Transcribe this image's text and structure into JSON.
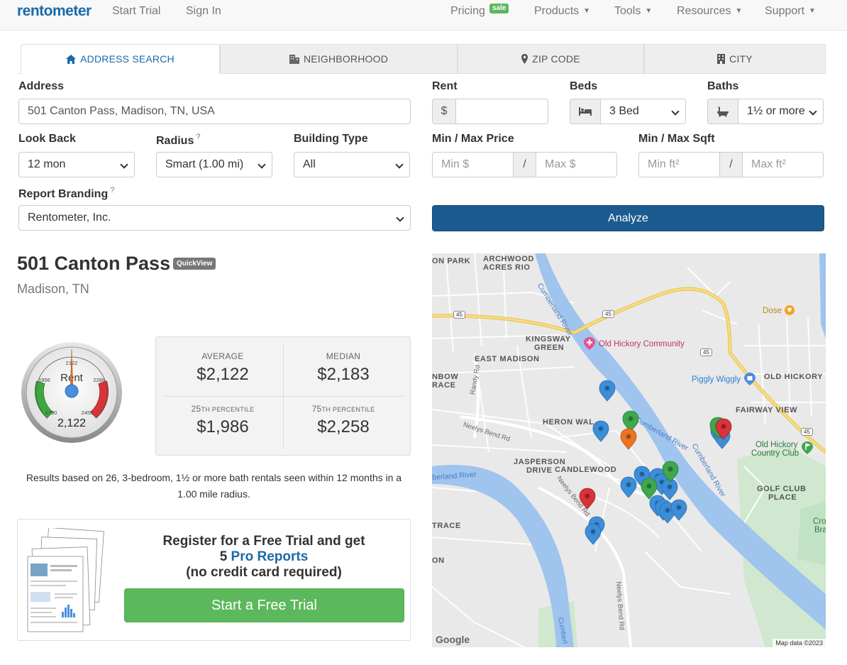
{
  "nav": {
    "logo": "rentometer",
    "start_trial": "Start Trial",
    "sign_in": "Sign In",
    "pricing": "Pricing",
    "sale_badge": "sale",
    "products": "Products",
    "tools": "Tools",
    "resources": "Resources",
    "support": "Support"
  },
  "tabs": [
    {
      "label": "ADDRESS SEARCH",
      "icon": "home-icon",
      "active": true
    },
    {
      "label": "NEIGHBORHOOD",
      "icon": "building-icon",
      "active": false
    },
    {
      "label": "ZIP CODE",
      "icon": "map-marker-icon",
      "active": false
    },
    {
      "label": "CITY",
      "icon": "city-icon",
      "active": false
    }
  ],
  "form": {
    "address_label": "Address",
    "address_value": "501 Canton Pass, Madison, TN, USA",
    "rent_label": "Rent",
    "rent_prefix": "$",
    "rent_value": "",
    "beds_label": "Beds",
    "beds_value": "3 Bed",
    "baths_label": "Baths",
    "baths_value": "1½ or more",
    "lookback_label": "Look Back",
    "lookback_value": "12 mon",
    "radius_label": "Radius",
    "radius_value": "Smart (1.00 mi)",
    "building_label": "Building Type",
    "building_value": "All",
    "price_label": "Min / Max Price",
    "min_price_placeholder": "Min $",
    "max_price_placeholder": "Max $",
    "sqft_label": "Min / Max Sqft",
    "min_sqft_placeholder": "Min ft²",
    "max_sqft_placeholder": "Max ft²",
    "separator": "/",
    "branding_label": "Report Branding",
    "branding_value": "Rentometer, Inc.",
    "help_mark": "?",
    "analyze": "Analyze"
  },
  "result": {
    "title": "501 Canton Pass",
    "quickview": "QuickView",
    "subtitle": "Madison, TN",
    "gauge": {
      "label": "Rent",
      "value": "2,122",
      "ticks": [
        "1790",
        "1956",
        "2122",
        "2288",
        "2455"
      ],
      "level": 0.5
    },
    "average_label": "AVERAGE",
    "average": "$2,122",
    "median_label": "MEDIAN",
    "median": "$2,183",
    "p25_num": "25",
    "p25_label": "TH PERCENTILE",
    "p25": "$1,986",
    "p75_num": "75",
    "p75_label": "TH PERCENTILE",
    "p75": "$2,258",
    "note": "Results based on 26, 3-bedroom, 1½ or more bath rentals seen within 12 months in a 1.00 mile radius."
  },
  "promo": {
    "line1": "Register for a Free Trial and get",
    "line2_prefix": "5 ",
    "line2_link": "Pro Reports",
    "line3": "(no credit card required)",
    "button": "Start a Free Trial"
  },
  "map": {
    "labels": {
      "on_park": "ON PARK",
      "archwood": "ARCHWOOD",
      "acres_rio": "ACRES RIO",
      "kingsway": "KINGSWAY",
      "green": "GREEN",
      "east_madison": "EAST MADISON",
      "nbow": "NBOW",
      "race": "RACE",
      "heron_wal": "HERON WAL",
      "jasperson": "JASPERSON",
      "drive": "DRIVE",
      "candlewood": "CANDLEWOOD",
      "trace": "TRACE",
      "on": "ON",
      "old_hickory": "OLD HICKORY",
      "fairway_view": "FAIRWAY VIEW",
      "golf_club": "GOLF CLUB",
      "place": "PLACE",
      "cro": "Cro",
      "brand": "Brand"
    },
    "pois": {
      "dose": "Dose",
      "old_hickory_community": "Old Hickory Community",
      "piggly_wiggly": "Piggly Wiggly",
      "old_hickory_cc_1": "Old Hickory",
      "old_hickory_cc_2": "Country Club"
    },
    "roads": {
      "cumberland_river": "Cumberland River",
      "cumberland_river_2": "Cumberland River",
      "cumberland_river_3": "Cumberland River",
      "berland_river": "berland River",
      "neelys_bend_rd": "Neelys Bend Rd",
      "neelys_bend_rd_2": "Neelys Bend Rd",
      "randy_rd": "Randy Rd",
      "rt45_a": "45",
      "rt45_b": "45",
      "rt45_c": "45",
      "rt45_d": "45",
      "cumberl": "Cumberl"
    },
    "google": "Google",
    "attribution": "Map data ©2023",
    "colors": {
      "blue": "#3d8ed8",
      "green": "#3fa84f",
      "red": "#d9333a",
      "orange": "#ea7424",
      "river": "#9fc4ee",
      "park": "#c7e6c8",
      "highway": "#f5d36b"
    }
  }
}
